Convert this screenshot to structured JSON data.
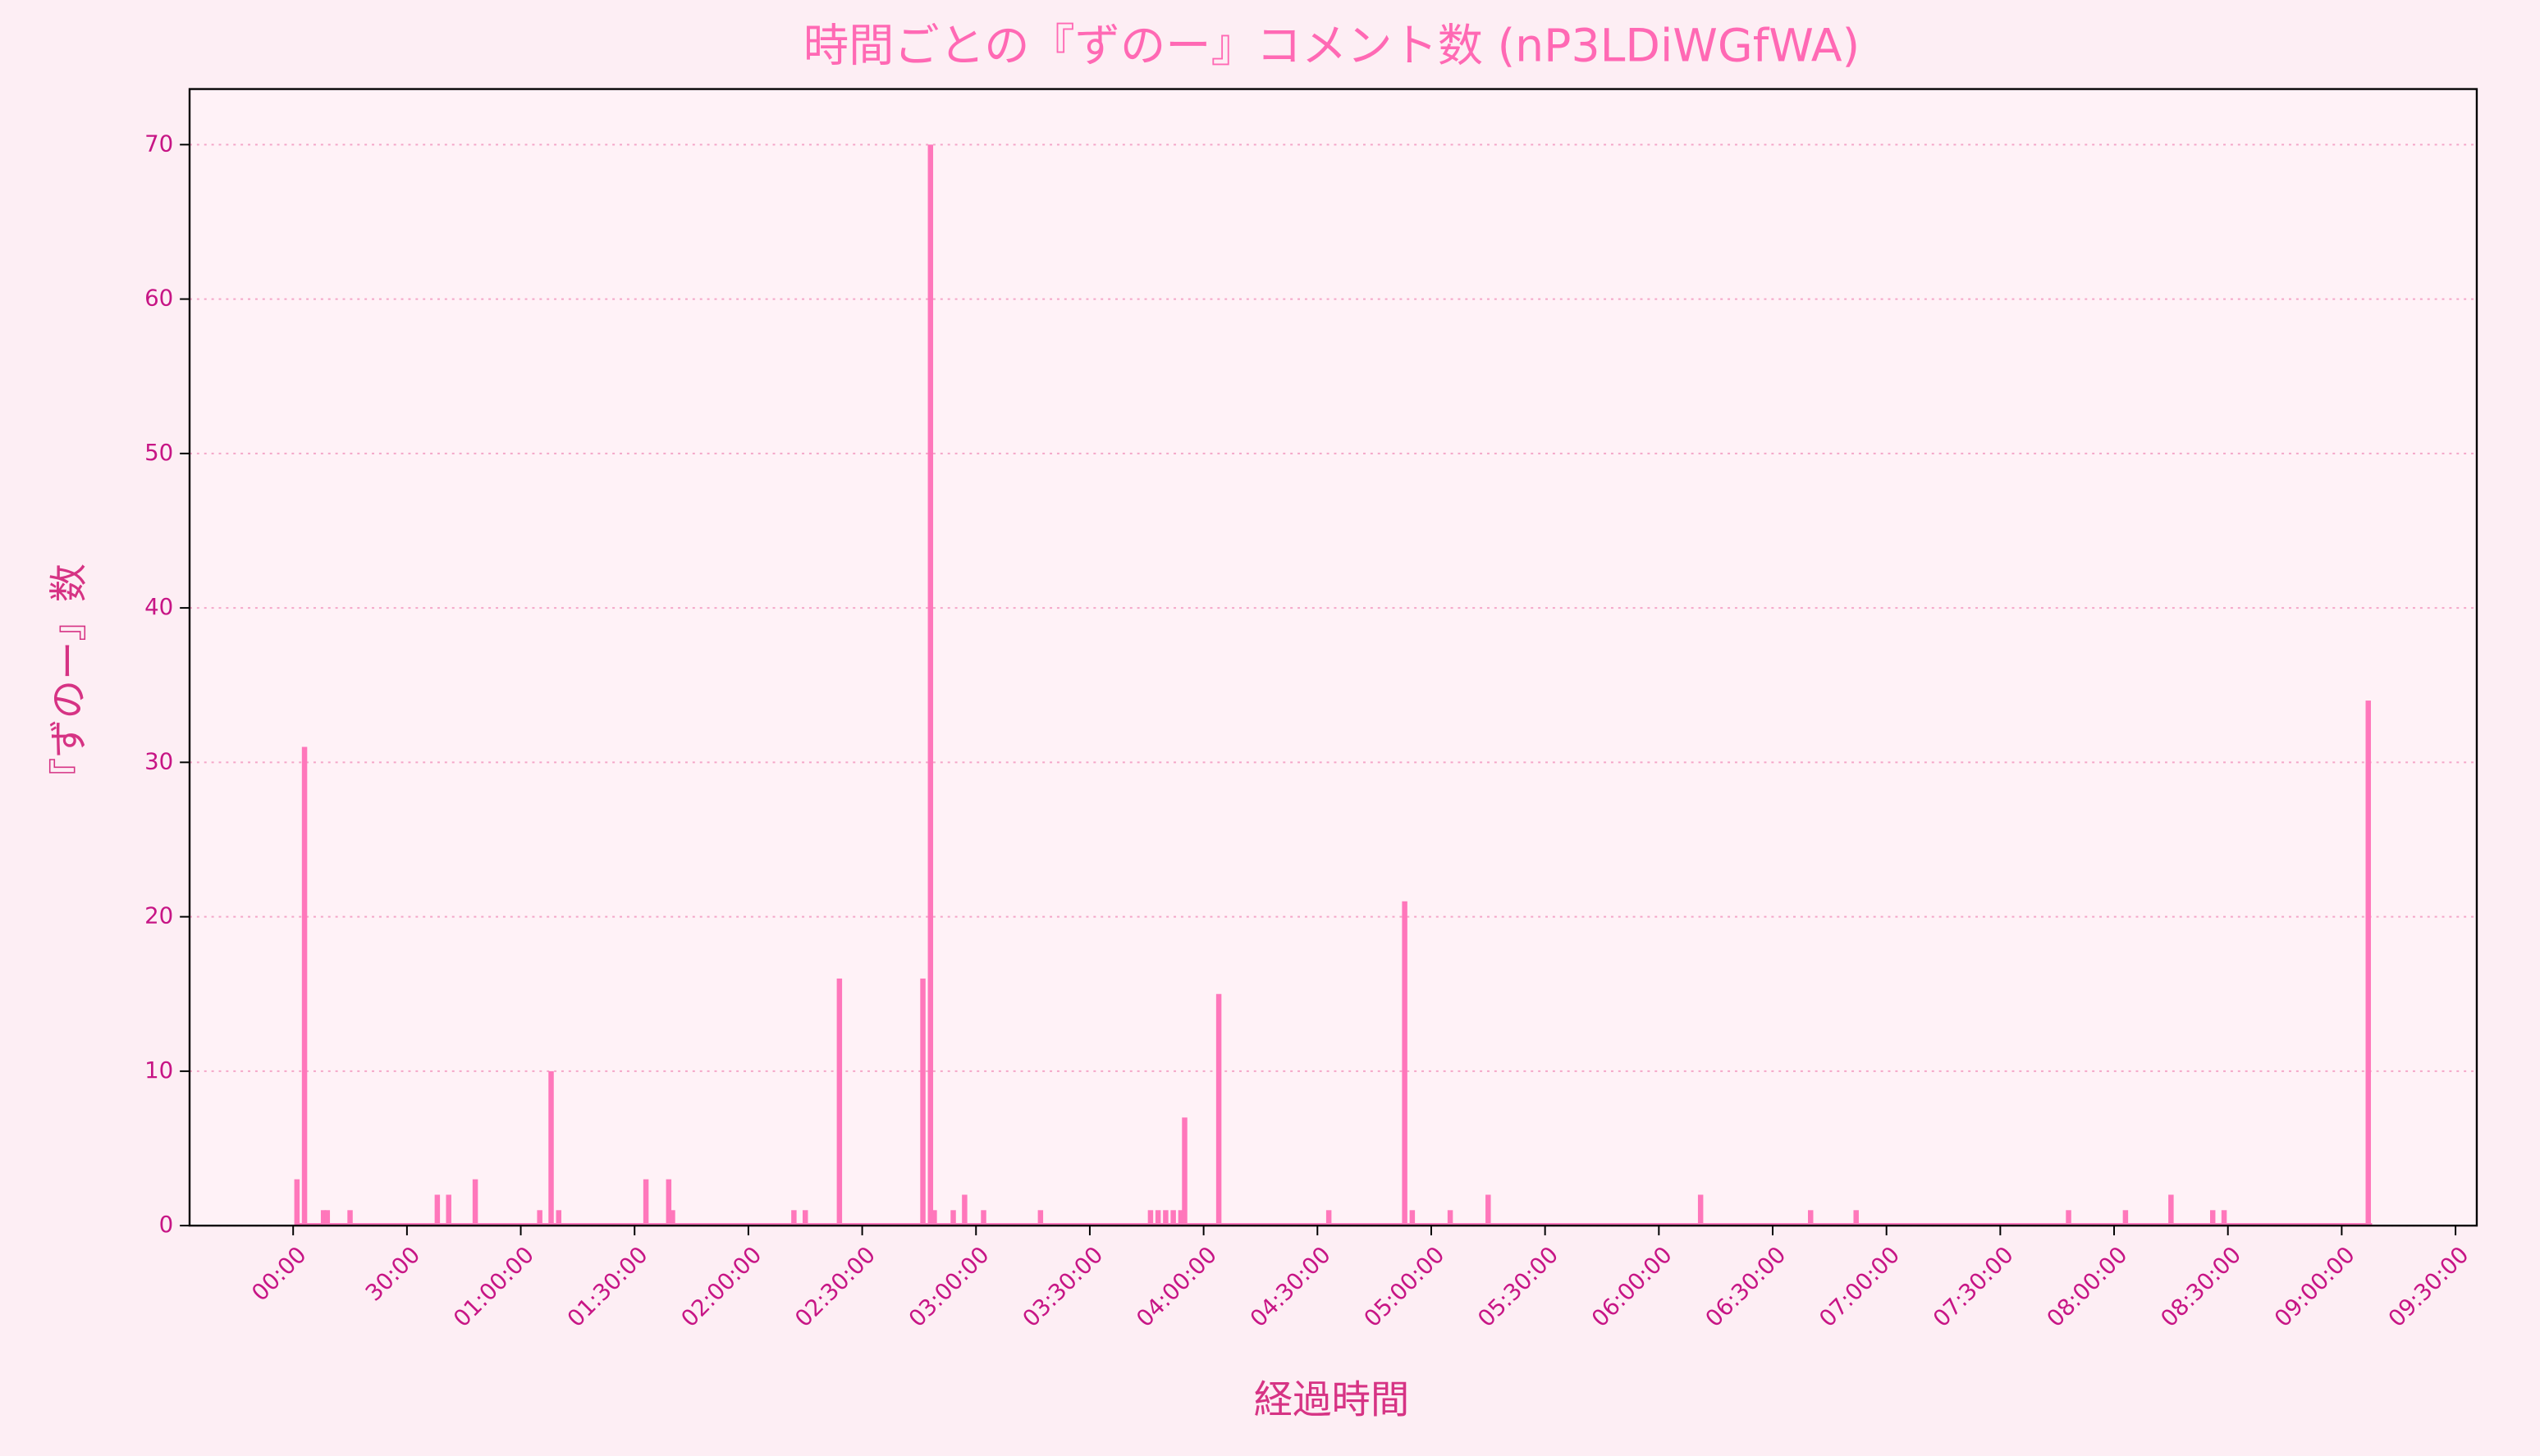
{
  "chart_data": {
    "type": "bar",
    "title": "時間ごとの『ずのー』コメント数 (nP3LDiWGfWA)",
    "x_label": "経過時間",
    "y_label": "『ずのー』数",
    "color": "#ff77bb",
    "grid": true,
    "x": [
      1,
      3,
      8,
      9,
      15,
      38,
      41,
      48,
      65,
      68,
      70,
      93,
      99,
      100,
      132,
      135,
      144,
      166,
      168,
      169,
      174,
      177,
      182,
      197,
      226,
      228,
      230,
      232,
      234,
      235,
      244,
      273,
      293,
      295,
      305,
      315,
      371,
      400,
      412,
      468,
      483,
      495,
      506,
      509,
      547
    ],
    "values": [
      3,
      31,
      1,
      1,
      1,
      2,
      2,
      3,
      1,
      10,
      1,
      3,
      3,
      1,
      1,
      1,
      16,
      16,
      70,
      1,
      1,
      2,
      1,
      1,
      1,
      1,
      1,
      1,
      1,
      7,
      15,
      1,
      21,
      1,
      1,
      2,
      2,
      1,
      1,
      1,
      1,
      2,
      1,
      1,
      34
    ],
    "xlim": [
      -27.3,
      575.6
    ],
    "xticks": [
      {
        "value": 0,
        "label": "00:00"
      },
      {
        "value": 30,
        "label": "30:00"
      },
      {
        "value": 60,
        "label": "01:00:00"
      },
      {
        "value": 90,
        "label": "01:30:00"
      },
      {
        "value": 120,
        "label": "02:00:00"
      },
      {
        "value": 150,
        "label": "02:30:00"
      },
      {
        "value": 180,
        "label": "03:00:00"
      },
      {
        "value": 210,
        "label": "03:30:00"
      },
      {
        "value": 240,
        "label": "04:00:00"
      },
      {
        "value": 270,
        "label": "04:30:00"
      },
      {
        "value": 300,
        "label": "05:00:00"
      },
      {
        "value": 330,
        "label": "05:30:00"
      },
      {
        "value": 360,
        "label": "06:00:00"
      },
      {
        "value": 390,
        "label": "06:30:00"
      },
      {
        "value": 420,
        "label": "07:00:00"
      },
      {
        "value": 450,
        "label": "07:30:00"
      },
      {
        "value": 480,
        "label": "08:00:00"
      },
      {
        "value": 510,
        "label": "08:30:00"
      },
      {
        "value": 540,
        "label": "09:00:00"
      },
      {
        "value": 570,
        "label": "09:30:00"
      }
    ],
    "ylim": [
      0,
      73.6
    ],
    "yticks": [
      0,
      10,
      20,
      30,
      40,
      50,
      60,
      70
    ]
  }
}
